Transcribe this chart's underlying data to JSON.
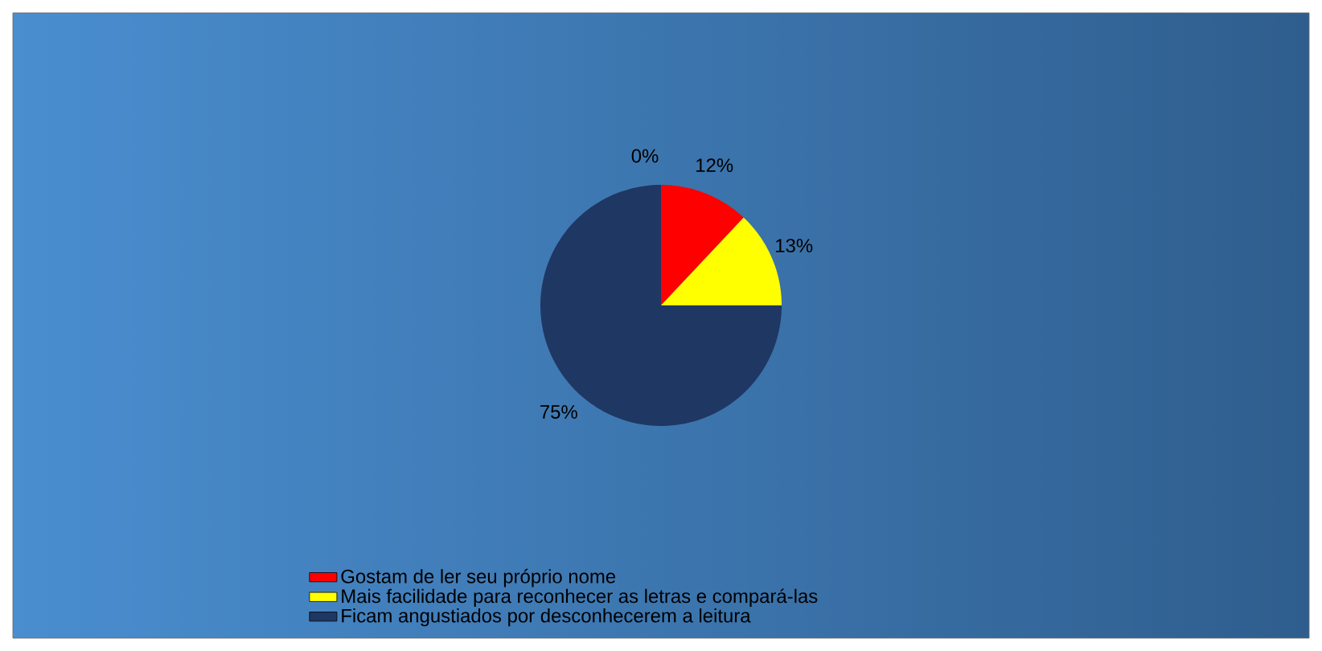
{
  "chart_data": {
    "type": "pie",
    "categories": [
      "Gostam de ler seu próprio nome",
      "Mais facilidade para reconhecer as letras e compará-las",
      "Ficam angustiados por desconhecerem a leitura",
      null
    ],
    "values": [
      12,
      13,
      75,
      0
    ],
    "value_labels": [
      "12%",
      "13%",
      "75%",
      "0%"
    ],
    "colors": [
      "#ff0000",
      "#ffff00",
      "#1f3763",
      "#7f7f7f"
    ],
    "legend": "bottom"
  }
}
